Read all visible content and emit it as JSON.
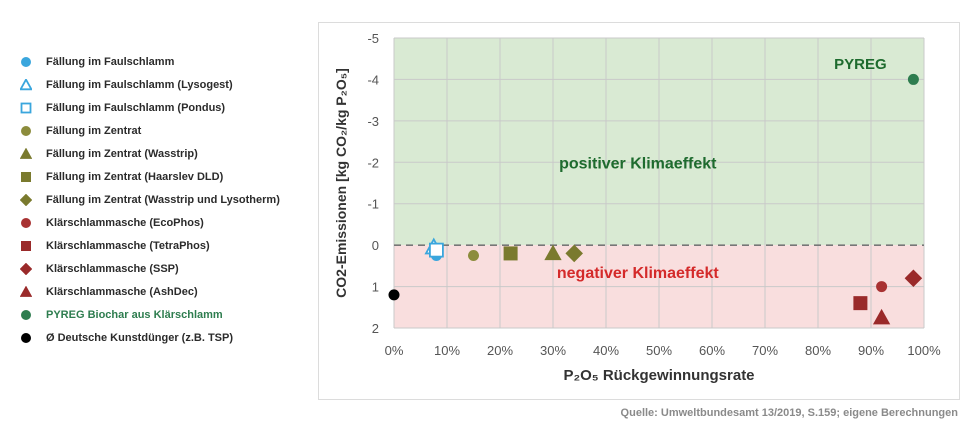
{
  "legend": [
    {
      "label": "Fällung im Faulschlamm",
      "shape": "circle",
      "color": "#3aa6dd",
      "fill": true
    },
    {
      "label": "Fällung im Faulschlamm (Lysogest)",
      "shape": "triangle",
      "color": "#3aa6dd",
      "fill": false
    },
    {
      "label": "Fällung im Faulschlamm (Pondus)",
      "shape": "square",
      "color": "#3aa6dd",
      "fill": false
    },
    {
      "label": "Fällung im Zentrat",
      "shape": "circle",
      "color": "#8c8c3c",
      "fill": true
    },
    {
      "label": "Fällung im Zentrat (Wasstrip)",
      "shape": "triangle",
      "color": "#7a7a2e",
      "fill": true
    },
    {
      "label": "Fällung im Zentrat (Haarslev DLD)",
      "shape": "square",
      "color": "#7a7a2e",
      "fill": true
    },
    {
      "label": "Fällung im Zentrat (Wasstrip und Lysotherm)",
      "shape": "diamond",
      "color": "#7a7a2e",
      "fill": true
    },
    {
      "label": "Klärschlammasche (EcoPhos)",
      "shape": "circle",
      "color": "#a83232",
      "fill": true
    },
    {
      "label": "Klärschlammasche (TetraPhos)",
      "shape": "square",
      "color": "#9a2a2a",
      "fill": true
    },
    {
      "label": "Klärschlammasche (SSP)",
      "shape": "diamond",
      "color": "#9a2a2a",
      "fill": true
    },
    {
      "label": "Klärschlammasche (AshDec)",
      "shape": "triangle",
      "color": "#9a2a2a",
      "fill": true
    },
    {
      "label": "PYREG Biochar aus Klärschlamm",
      "shape": "circle",
      "color": "#2e7d4f",
      "fill": true,
      "labelColor": "#2e7d4f"
    },
    {
      "label": "Ø Deutsche Kunstdünger (z.B. TSP)",
      "shape": "circle",
      "color": "#000000",
      "fill": true
    }
  ],
  "chart_data": {
    "type": "scatter",
    "xlabel": "P₂O₅ Rückgewinnungsrate",
    "ylabel": "CO2-Emissionen [kg CO₂/kg P₂O₅]",
    "xlim": [
      0,
      100
    ],
    "ylim": [
      2,
      -5
    ],
    "x_ticks": [
      0,
      10,
      20,
      30,
      40,
      50,
      60,
      70,
      80,
      90,
      100
    ],
    "x_tick_labels": [
      "0%",
      "10%",
      "20%",
      "30%",
      "40%",
      "50%",
      "60%",
      "70%",
      "80%",
      "90%",
      "100%"
    ],
    "y_ticks": [
      -5,
      -4,
      -3,
      -2,
      -1,
      0,
      1,
      2
    ],
    "y_tick_labels": [
      "-5",
      "-4",
      "-3",
      "-2",
      "-1",
      "0",
      "1",
      "2"
    ],
    "positive_region": {
      "from": 0,
      "to": -5,
      "color": "#d9ead3",
      "label": "positiver Klimaeffekt",
      "labelColor": "#1e6b2e",
      "labelAt": [
        46,
        -2.0
      ]
    },
    "negative_region": {
      "from": 0,
      "to": 2,
      "color": "#f9dede",
      "label": "negativer Klimaeffekt",
      "labelColor": "#d42a2a",
      "labelAt": [
        46,
        0.65
      ]
    },
    "annotations": [
      {
        "text": "PYREG",
        "x": 88,
        "y": -4.4,
        "color": "#1e6b2e"
      }
    ],
    "points": [
      {
        "name": "Fällung im Faulschlamm",
        "x": 8,
        "y": 0.25,
        "shape": "circle",
        "color": "#3aa6dd",
        "fill": true
      },
      {
        "name": "Fällung im Faulschlamm (Lysogest)",
        "x": 7.5,
        "y": 0.05,
        "shape": "triangle",
        "color": "#3aa6dd",
        "fill": false
      },
      {
        "name": "Fällung im Faulschlamm (Pondus)",
        "x": 8,
        "y": 0.12,
        "shape": "square",
        "color": "#3aa6dd",
        "fill": false
      },
      {
        "name": "Fällung im Zentrat",
        "x": 15,
        "y": 0.25,
        "shape": "circle",
        "color": "#8c8c3c",
        "fill": true
      },
      {
        "name": "Fällung im Zentrat (Wasstrip)",
        "x": 30,
        "y": 0.2,
        "shape": "triangle",
        "color": "#7a7a2e",
        "fill": true
      },
      {
        "name": "Fällung im Zentrat (Haarslev DLD)",
        "x": 22,
        "y": 0.2,
        "shape": "square",
        "color": "#7a7a2e",
        "fill": true
      },
      {
        "name": "Fällung im Zentrat (Wasstrip und Lysotherm)",
        "x": 34,
        "y": 0.2,
        "shape": "diamond",
        "color": "#7a7a2e",
        "fill": true
      },
      {
        "name": "Klärschlammasche (EcoPhos)",
        "x": 92,
        "y": 1.0,
        "shape": "circle",
        "color": "#a83232",
        "fill": true
      },
      {
        "name": "Klärschlammasche (TetraPhos)",
        "x": 88,
        "y": 1.4,
        "shape": "square",
        "color": "#9a2a2a",
        "fill": true
      },
      {
        "name": "Klärschlammasche (SSP)",
        "x": 98,
        "y": 0.8,
        "shape": "diamond",
        "color": "#9a2a2a",
        "fill": true
      },
      {
        "name": "Klärschlammasche (AshDec)",
        "x": 92,
        "y": 1.75,
        "shape": "triangle",
        "color": "#9a2a2a",
        "fill": true
      },
      {
        "name": "PYREG Biochar aus Klärschlamm",
        "x": 98,
        "y": -4.0,
        "shape": "circle",
        "color": "#2e7d4f",
        "fill": true
      },
      {
        "name": "Ø Deutsche Kunstdünger (z.B. TSP)",
        "x": 0,
        "y": 1.2,
        "shape": "circle",
        "color": "#000000",
        "fill": true
      }
    ]
  },
  "source": "Quelle: Umweltbundesamt 13/2019, S.159; eigene Berechnungen"
}
